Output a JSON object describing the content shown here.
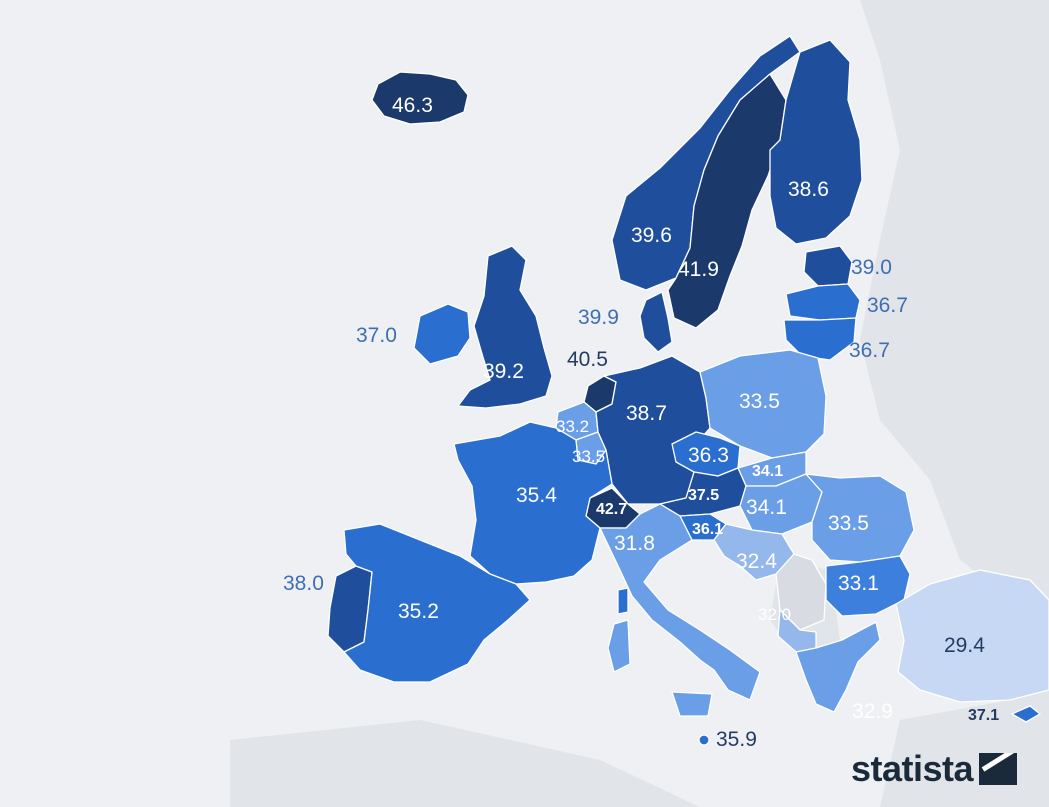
{
  "legend_unit": "",
  "colors": {
    "darkest": "#1b3a6b",
    "dark": "#1f4f9c",
    "mid": "#2a6fd0",
    "mid_light": "#3d7fdc",
    "light": "#6a9ee6",
    "lighter": "#94b8ec",
    "lightest": "#c7d8f4",
    "non_data": "#d8dce2"
  },
  "regions": [
    {
      "id": "iceland",
      "name": "Iceland",
      "value": "46.3"
    },
    {
      "id": "norway",
      "name": "Norway",
      "value": "39.6"
    },
    {
      "id": "sweden",
      "name": "Sweden",
      "value": "41.9"
    },
    {
      "id": "finland",
      "name": "Finland",
      "value": "38.6"
    },
    {
      "id": "estonia",
      "name": "Estonia",
      "value": "39.0"
    },
    {
      "id": "latvia",
      "name": "Latvia",
      "value": "36.7"
    },
    {
      "id": "lithuania",
      "name": "Lithuania",
      "value": "36.7"
    },
    {
      "id": "denmark",
      "name": "Denmark",
      "value": "39.9"
    },
    {
      "id": "ireland",
      "name": "Ireland",
      "value": "37.0"
    },
    {
      "id": "uk",
      "name": "United Kingdom",
      "value": "39.2"
    },
    {
      "id": "netherlands",
      "name": "Netherlands",
      "value": "40.5"
    },
    {
      "id": "belgium",
      "name": "Belgium",
      "value": "33.2"
    },
    {
      "id": "luxembourg",
      "name": "Luxembourg",
      "value": "33.5"
    },
    {
      "id": "germany",
      "name": "Germany",
      "value": "38.7"
    },
    {
      "id": "poland",
      "name": "Poland",
      "value": "33.5"
    },
    {
      "id": "czechia",
      "name": "Czechia",
      "value": "36.3"
    },
    {
      "id": "slovakia",
      "name": "Slovakia",
      "value": "34.1"
    },
    {
      "id": "austria",
      "name": "Austria",
      "value": "37.5"
    },
    {
      "id": "switzerland",
      "name": "Switzerland",
      "value": "42.7"
    },
    {
      "id": "hungary",
      "name": "Hungary",
      "value": "34.1"
    },
    {
      "id": "slovenia",
      "name": "Slovenia",
      "value": "36.1"
    },
    {
      "id": "croatia",
      "name": "Croatia",
      "value": "32.4"
    },
    {
      "id": "romania",
      "name": "Romania",
      "value": "33.5"
    },
    {
      "id": "bulgaria",
      "name": "Bulgaria",
      "value": "33.1"
    },
    {
      "id": "north_macedonia",
      "name": "North Macedonia",
      "value": "32.0"
    },
    {
      "id": "france",
      "name": "France",
      "value": "35.4"
    },
    {
      "id": "portugal",
      "name": "Portugal",
      "value": "38.0"
    },
    {
      "id": "spain",
      "name": "Spain",
      "value": "35.2"
    },
    {
      "id": "italy",
      "name": "Italy",
      "value": "31.8"
    },
    {
      "id": "malta",
      "name": "Malta",
      "value": "35.9"
    },
    {
      "id": "greece",
      "name": "Greece",
      "value": "32.9"
    },
    {
      "id": "turkey",
      "name": "Turkey",
      "value": "29.4"
    },
    {
      "id": "cyprus",
      "name": "Cyprus",
      "value": "37.1"
    }
  ],
  "logo": {
    "text": "statista",
    "icon": "statista-logo-icon"
  }
}
